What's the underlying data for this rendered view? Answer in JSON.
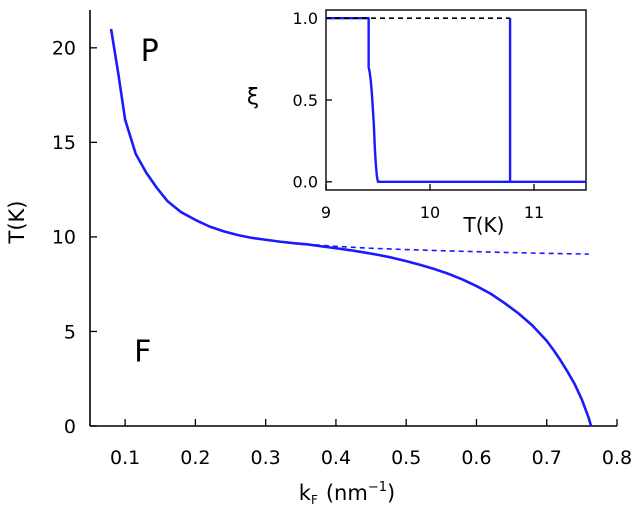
{
  "chart_data": [
    {
      "type": "line",
      "xlabel": "k",
      "xlabel_sub": "F",
      "xlabel_units": "(nm",
      "xlabel_units_sup": "−1",
      "xlabel_units_close": ")",
      "ylabel": "T(K)",
      "xlim": [
        0.05,
        0.8
      ],
      "ylim": [
        0,
        22
      ],
      "xticks": [
        0.1,
        0.2,
        0.3,
        0.4,
        0.5,
        0.6,
        0.7,
        0.8
      ],
      "yticks": [
        0,
        5,
        10,
        15,
        20
      ],
      "annotations": [
        {
          "text": "P",
          "x": 0.135,
          "y": 19.3
        },
        {
          "text": "F",
          "x": 0.125,
          "y": 3.4
        }
      ],
      "series": [
        {
          "style": "solid",
          "color": "#1a1aff",
          "x": [
            0.08,
            0.09,
            0.1,
            0.115,
            0.13,
            0.145,
            0.16,
            0.18,
            0.2,
            0.22,
            0.24,
            0.26,
            0.28,
            0.3,
            0.32,
            0.34,
            0.36,
            0.38,
            0.4,
            0.42,
            0.44,
            0.46,
            0.48,
            0.5,
            0.52,
            0.54,
            0.56,
            0.58,
            0.6,
            0.62,
            0.64,
            0.66,
            0.68,
            0.7,
            0.71,
            0.72,
            0.73,
            0.74,
            0.75,
            0.755,
            0.76,
            0.763
          ],
          "y": [
            21.0,
            18.7,
            16.2,
            14.4,
            13.4,
            12.6,
            11.9,
            11.3,
            10.9,
            10.55,
            10.3,
            10.1,
            9.95,
            9.85,
            9.75,
            9.67,
            9.6,
            9.5,
            9.4,
            9.3,
            9.18,
            9.05,
            8.9,
            8.72,
            8.52,
            8.3,
            8.05,
            7.75,
            7.4,
            7.0,
            6.5,
            5.95,
            5.3,
            4.5,
            4.0,
            3.45,
            2.85,
            2.2,
            1.4,
            0.9,
            0.4,
            0.0
          ]
        },
        {
          "style": "dashed",
          "color": "#1a1aff",
          "x": [
            0.37,
            0.4,
            0.45,
            0.5,
            0.55,
            0.6,
            0.65,
            0.7,
            0.73,
            0.76
          ],
          "y": [
            9.58,
            9.5,
            9.4,
            9.33,
            9.27,
            9.22,
            9.17,
            9.13,
            9.11,
            9.09
          ]
        }
      ]
    },
    {
      "type": "line",
      "xlabel": "T(K)",
      "ylabel": "ξ",
      "xlim": [
        9,
        11.5
      ],
      "ylim": [
        -0.05,
        1.05
      ],
      "xticks": [
        9,
        10,
        11
      ],
      "yticks": [
        0.0,
        0.5,
        1.0
      ],
      "ytick_labels": [
        "0.0",
        "0.5",
        "1.0"
      ],
      "series": [
        {
          "style": "solid",
          "color": "#1a1aff",
          "x": [
            9.0,
            9.41,
            9.41,
            9.42,
            9.43,
            9.44,
            9.45,
            9.46,
            9.47,
            9.48,
            9.49,
            9.5,
            11.5
          ],
          "y": [
            1.0,
            1.0,
            0.7,
            0.67,
            0.62,
            0.55,
            0.45,
            0.35,
            0.2,
            0.1,
            0.03,
            0.0,
            0.0
          ]
        },
        {
          "style": "solid",
          "color": "#1a1aff",
          "x": [
            10.77,
            10.77
          ],
          "y": [
            0.0,
            1.0
          ]
        },
        {
          "style": "dashed",
          "color": "#000000",
          "x": [
            9.0,
            10.77
          ],
          "y": [
            1.0,
            1.0
          ]
        }
      ]
    }
  ]
}
